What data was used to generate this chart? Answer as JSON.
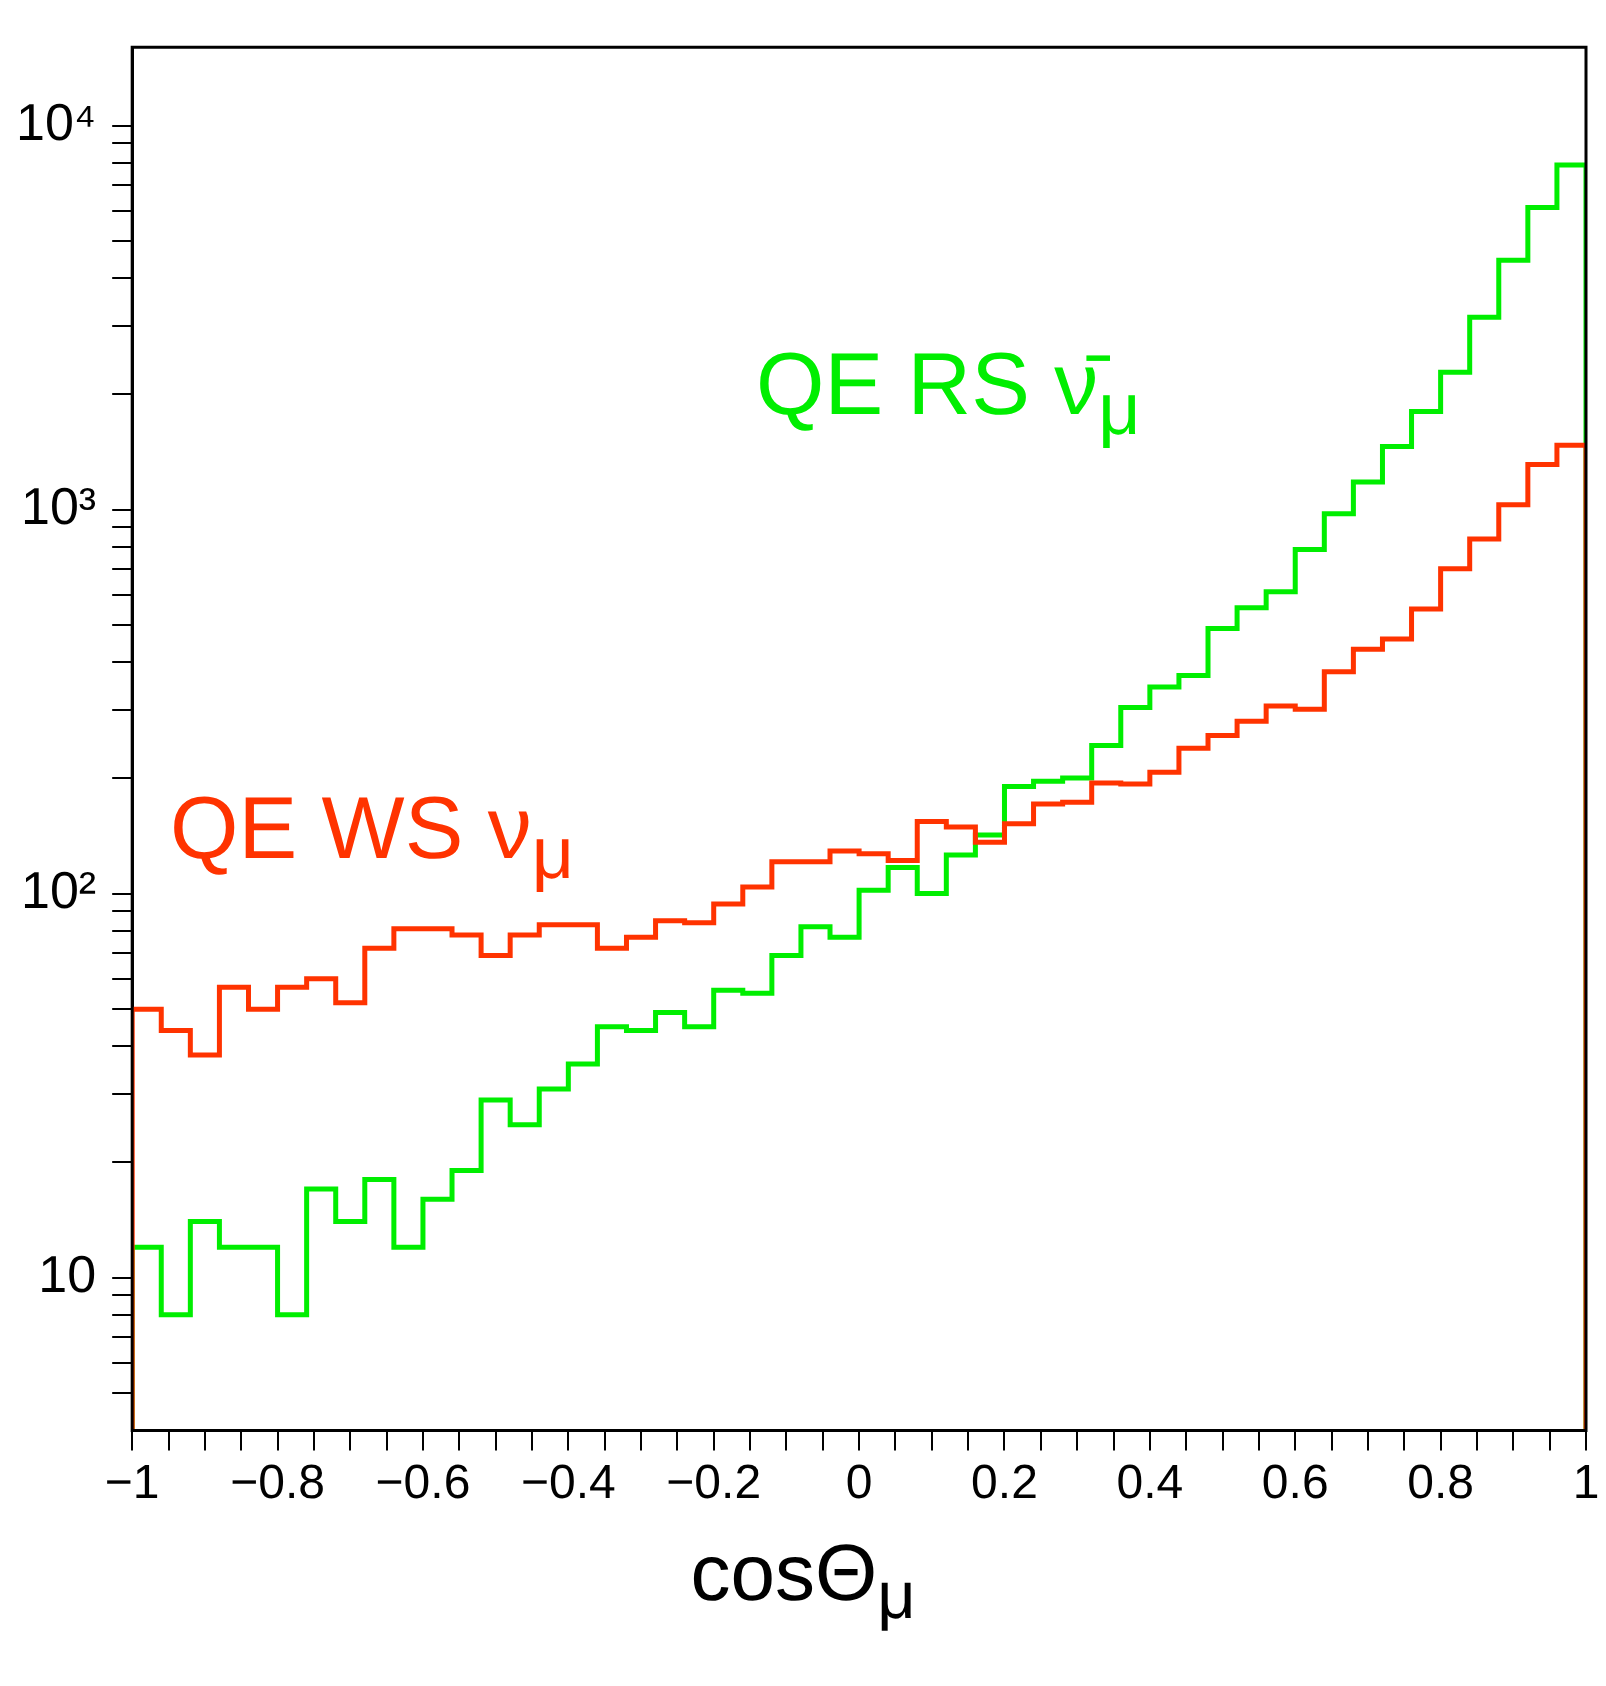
{
  "chart_data": {
    "type": "histogram",
    "xlabel": "cosΘ$_{μ}$",
    "bins": [
      -1,
      -0.96,
      -0.92,
      -0.88,
      -0.84,
      -0.8,
      -0.76,
      -0.72,
      -0.68,
      -0.64,
      -0.6,
      -0.56,
      -0.52,
      -0.48,
      -0.44,
      -0.4,
      -0.36,
      -0.32,
      -0.28,
      -0.24,
      -0.2,
      -0.16,
      -0.12,
      -0.08,
      -0.04,
      0,
      0.04,
      0.08,
      0.12,
      0.16,
      0.2,
      0.24,
      0.28,
      0.32,
      0.36,
      0.4,
      0.44,
      0.48,
      0.52,
      0.56,
      0.6,
      0.64,
      0.68,
      0.72,
      0.76,
      0.8,
      0.84,
      0.88,
      0.92,
      0.96,
      1
    ],
    "series": [
      {
        "name": "QE WS ν$_{μ}$",
        "color": "#ff3300",
        "values": [
          50,
          44,
          38,
          57,
          50,
          57,
          60,
          52,
          72,
          81,
          81,
          78,
          69,
          78,
          83,
          83,
          72,
          77,
          85,
          84,
          94,
          104,
          121,
          121,
          129,
          127,
          122,
          154,
          149,
          136,
          152,
          171,
          173,
          194,
          193,
          207,
          239,
          258,
          281,
          308,
          302,
          378,
          433,
          460,
          551,
          701,
          838,
          1030,
          1310,
          1470
        ]
      },
      {
        "name": "QE RS ν̄$_{μ}$",
        "color": "#00ee00",
        "values": [
          12,
          8,
          14,
          12,
          12,
          8,
          17,
          14,
          18,
          12,
          16,
          19,
          29,
          25,
          31,
          36,
          45,
          44,
          49,
          45,
          56,
          55,
          69,
          82,
          77,
          102,
          117,
          100,
          126,
          142,
          190,
          196,
          200,
          243,
          305,
          345,
          370,
          490,
          555,
          611,
          787,
          975,
          1180,
          1460,
          1800,
          2280,
          3170,
          4460,
          6120,
          7890
        ]
      }
    ],
    "xlim": [
      -1,
      1
    ],
    "xticks": [
      -1,
      {
        "value": -0.95,
        "label": null
      },
      {
        "value": -0.9,
        "label": null
      },
      {
        "value": -0.85,
        "label": null
      },
      -0.8,
      {
        "value": -0.75,
        "label": null
      },
      {
        "value": -0.7,
        "label": null
      },
      {
        "value": -0.65,
        "label": null
      },
      -0.6,
      {
        "value": -0.55,
        "label": null
      },
      {
        "value": -0.5,
        "label": null
      },
      {
        "value": -0.45,
        "label": null
      },
      -0.4,
      {
        "value": -0.35,
        "label": null
      },
      {
        "value": -0.3,
        "label": null
      },
      {
        "value": -0.25,
        "label": null
      },
      -0.2,
      {
        "value": -0.15,
        "label": null
      },
      {
        "value": -0.1,
        "label": null
      },
      {
        "value": -0.05,
        "label": null
      },
      0,
      {
        "value": 0.05,
        "label": null
      },
      {
        "value": 0.1,
        "label": null
      },
      {
        "value": 0.15,
        "label": null
      },
      0.2,
      {
        "value": 0.25,
        "label": null
      },
      {
        "value": 0.3,
        "label": null
      },
      {
        "value": 0.35,
        "label": null
      },
      0.4,
      {
        "value": 0.45,
        "label": null
      },
      {
        "value": 0.5,
        "label": null
      },
      {
        "value": 0.55,
        "label": null
      },
      0.6,
      {
        "value": 0.65,
        "label": null
      },
      {
        "value": 0.7,
        "label": null
      },
      {
        "value": 0.75,
        "label": null
      },
      0.8,
      {
        "value": 0.85,
        "label": null
      },
      {
        "value": 0.9,
        "label": null
      },
      {
        "value": 0.95,
        "label": null
      },
      1
    ],
    "ylim": [
      4,
      16000
    ],
    "yticks": [
      {
        "value": 5,
        "label": null
      },
      {
        "value": 6,
        "label": null
      },
      {
        "value": 7,
        "label": null
      },
      {
        "value": 8,
        "label": null
      },
      {
        "value": 9,
        "label": null
      },
      {
        "value": 10,
        "label": "10"
      },
      {
        "value": 20,
        "label": null
      },
      {
        "value": 30,
        "label": null
      },
      {
        "value": 40,
        "label": null
      },
      {
        "value": 50,
        "label": null
      },
      {
        "value": 60,
        "label": null
      },
      {
        "value": 70,
        "label": null
      },
      {
        "value": 80,
        "label": null
      },
      {
        "value": 90,
        "label": null
      },
      {
        "value": 100,
        "label": "10²"
      },
      {
        "value": 200,
        "label": null
      },
      {
        "value": 300,
        "label": null
      },
      {
        "value": 400,
        "label": null
      },
      {
        "value": 500,
        "label": null
      },
      {
        "value": 600,
        "label": null
      },
      {
        "value": 700,
        "label": null
      },
      {
        "value": 800,
        "label": null
      },
      {
        "value": 900,
        "label": null
      },
      {
        "value": 1000,
        "label": "10³"
      },
      {
        "value": 2000,
        "label": null
      },
      {
        "value": 3000,
        "label": null
      },
      {
        "value": 4000,
        "label": null
      },
      {
        "value": 5000,
        "label": null
      },
      {
        "value": 6000,
        "label": null
      },
      {
        "value": 7000,
        "label": null
      },
      {
        "value": 8000,
        "label": null
      },
      {
        "value": 9000,
        "label": null
      },
      {
        "value": 10000,
        "label": "10⁴"
      }
    ],
    "log": true,
    "grid": false,
    "legend": false
  }
}
